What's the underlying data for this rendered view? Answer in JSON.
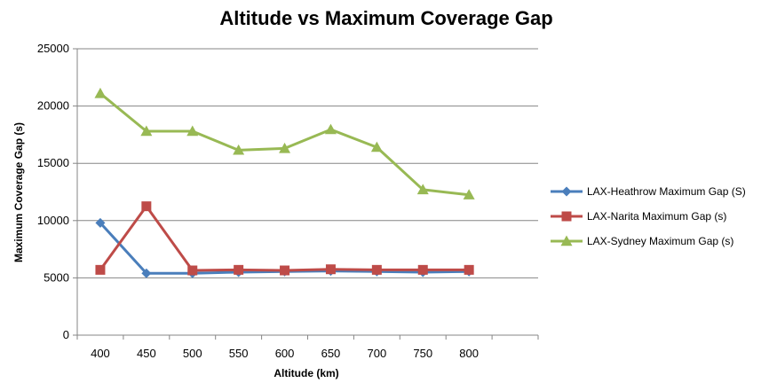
{
  "chart_data": {
    "type": "line",
    "title": "Altitude vs Maximum Coverage Gap",
    "xlabel": "Altitude (km)",
    "ylabel": "Maximum Coverage Gap (s)",
    "categories": [
      "400",
      "450",
      "500",
      "550",
      "600",
      "650",
      "700",
      "750",
      "800"
    ],
    "ylim": [
      0,
      25000
    ],
    "yticks": [
      0,
      5000,
      10000,
      15000,
      20000,
      25000
    ],
    "grid": true,
    "legend_position": "right",
    "series": [
      {
        "name": "LAX-Heathrow Maximum Gap (S)",
        "color": "#4a7ebb",
        "marker": "diamond",
        "values": [
          9800,
          5400,
          5400,
          5500,
          5550,
          5600,
          5550,
          5500,
          5550
        ]
      },
      {
        "name": "LAX-Narita Maximum Gap (s)",
        "color": "#be4b48",
        "marker": "square",
        "values": [
          5700,
          11250,
          5650,
          5700,
          5650,
          5750,
          5700,
          5700,
          5700
        ]
      },
      {
        "name": "LAX-Sydney Maximum Gap (s)",
        "color": "#98b954",
        "marker": "triangle",
        "values": [
          21100,
          17800,
          17800,
          16150,
          16300,
          17950,
          16400,
          12700,
          12250
        ]
      }
    ]
  }
}
